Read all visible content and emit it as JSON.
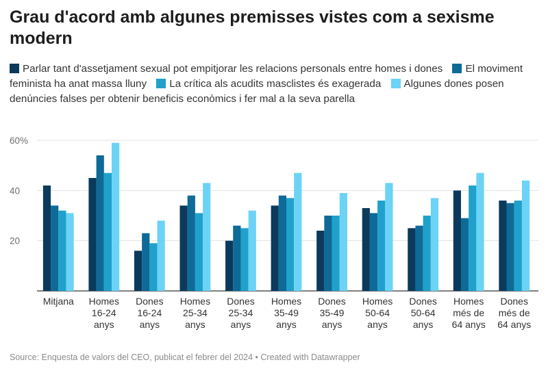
{
  "title": "Grau d'acord amb algunes premisses vistes com a sexisme modern",
  "source": "Source: Enquesta de valors del CEO, publicat el febrer del 2024 • Created with Datawrapper",
  "chart_data": {
    "type": "bar",
    "title": "Grau d'acord amb algunes premisses vistes com a sexisme modern",
    "ylim": [
      0,
      60
    ],
    "yticks": [
      20,
      40,
      60
    ],
    "ytick_labels": [
      "20",
      "40",
      "60%"
    ],
    "grid": true,
    "legend_position": "top",
    "categories": [
      [
        "Mitjana"
      ],
      [
        "Homes",
        "16-24",
        "anys"
      ],
      [
        "Dones",
        "16-24",
        "anys"
      ],
      [
        "Homes",
        "25-34",
        "anys"
      ],
      [
        "Dones",
        "25-34",
        "anys"
      ],
      [
        "Homes",
        "35-49",
        "anys"
      ],
      [
        "Dones",
        "35-49",
        "anys"
      ],
      [
        "Homes",
        "50-64",
        "anys"
      ],
      [
        "Dones",
        "50-64",
        "anys"
      ],
      [
        "Homes",
        "més de",
        "64 anys"
      ],
      [
        "Dones",
        "més de",
        "64 anys"
      ]
    ],
    "series": [
      {
        "name": "Parlar tant d'assetjament sexual pot empitjorar les relacions personals entre homes i dones",
        "color": "#0b3a5c",
        "values": [
          42,
          45,
          16,
          34,
          20,
          34,
          24,
          33,
          25,
          40,
          36
        ]
      },
      {
        "name": "El moviment feminista ha anat massa lluny",
        "color": "#0e6a96",
        "values": [
          34,
          54,
          23,
          38,
          26,
          38,
          30,
          31,
          26,
          29,
          35
        ]
      },
      {
        "name": "La crítica als acudits masclistes és exagerada",
        "color": "#1fa1cc",
        "values": [
          32,
          47,
          19,
          31,
          25,
          37,
          30,
          36,
          30,
          42,
          36
        ]
      },
      {
        "name": "Algunes dones posen denúncies falses per obtenir beneficis econòmics i fer mal a la seva parella",
        "color": "#6bd3f5",
        "values": [
          31,
          59,
          28,
          43,
          32,
          47,
          39,
          43,
          37,
          47,
          44
        ]
      }
    ]
  }
}
